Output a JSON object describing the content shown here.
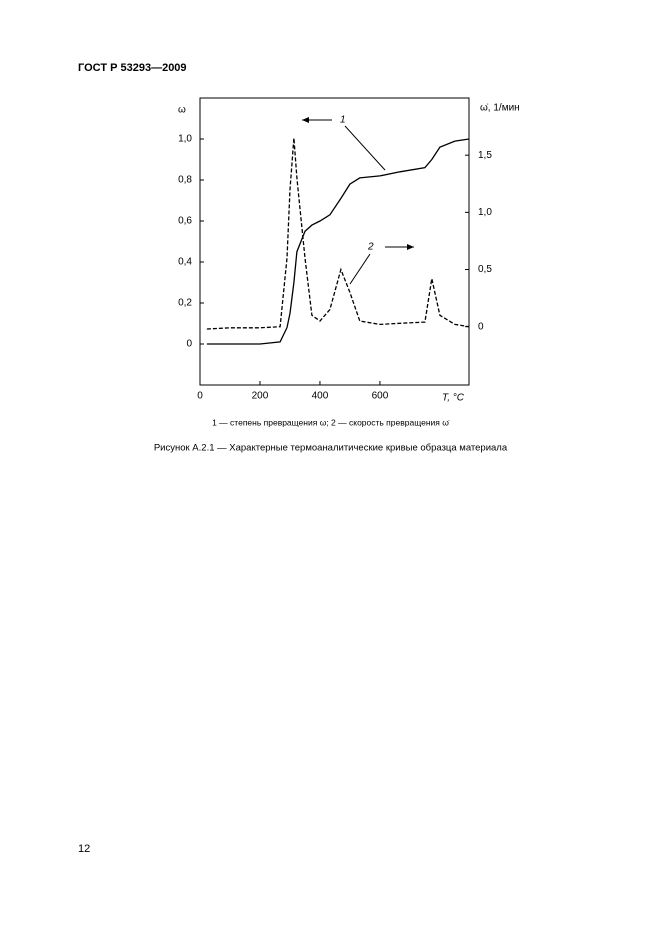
{
  "header": {
    "title": "ГОСТ Р 53293—2009"
  },
  "chart_data": {
    "type": "line",
    "y_label": "ω",
    "y2_label": "ω̇, 1/мин",
    "x_label": "T, °C",
    "x": [
      23,
      100,
      200,
      267,
      290,
      300,
      313,
      323,
      350,
      373,
      400,
      433,
      470,
      500,
      533,
      600,
      667,
      750,
      773,
      800,
      850,
      897
    ],
    "series": [
      {
        "color": "#000000",
        "dash": false,
        "values": [
          0,
          0,
          0,
          0.01,
          0.08,
          0.15,
          0.3,
          0.45,
          0.55,
          0.58,
          0.6,
          0.63,
          0.71,
          0.78,
          0.81,
          0.82,
          0.84,
          0.86,
          0.9,
          0.96,
          0.99,
          1.0
        ]
      },
      {
        "color": "#000000",
        "dash": true,
        "axis": "y2",
        "values": [
          -0.02,
          -0.01,
          -0.01,
          0.0,
          0.6,
          1.2,
          1.65,
          1.3,
          0.6,
          0.1,
          0.05,
          0.15,
          0.5,
          0.3,
          0.05,
          0.02,
          0.03,
          0.04,
          0.42,
          0.1,
          0.02,
          0.0
        ]
      }
    ],
    "xlim": [
      0,
      897
    ],
    "xticks": [
      0,
      200,
      400,
      600
    ],
    "ylim": [
      -0.2,
      1.2
    ],
    "yticks": [
      0,
      {
        "value": 0.2,
        "label": "0,2"
      },
      {
        "value": 0.4,
        "label": "0,4"
      },
      {
        "value": 0.6,
        "label": "0,6"
      },
      {
        "value": 0.8,
        "label": "0,8"
      },
      {
        "value": 1.0,
        "label": "1,0"
      }
    ],
    "y2lim": [
      -0.51,
      2.0
    ],
    "y2ticks": [
      0,
      {
        "value": 0.5,
        "label": "0,5"
      },
      {
        "value": 1.0,
        "label": "1,0"
      },
      {
        "value": 1.5,
        "label": "1,5"
      }
    ],
    "annotations": [
      {
        "text": "1"
      },
      {
        "text": "2"
      }
    ]
  },
  "legend_caption": "1 — степень превращения ω; 2 — скорость превращения ω̇",
  "figure_caption": "Рисунок А.2.1 — Характерные термоаналитические кривые образца материала",
  "page_number": "12"
}
